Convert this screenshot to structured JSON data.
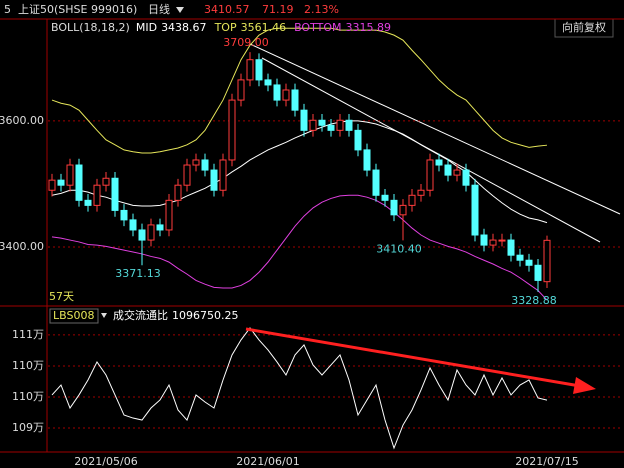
{
  "header": {
    "code": "5",
    "name": "上证50(SHSE 999016)",
    "period": "日线",
    "price": 3410.57,
    "change": 71.19,
    "change_pct": "2.13%",
    "adjust": "向前复权"
  },
  "chart_data": [
    {
      "type": "candlestick",
      "indicator": "BOLL(18,18,2)",
      "bars_label": "57天",
      "up_color": "#ff3c3c",
      "down_color": "#54ffff",
      "categories": [
        null,
        null,
        null,
        null,
        null,
        null,
        "2021/05/06",
        null,
        null,
        null,
        null,
        null,
        null,
        null,
        null,
        null,
        null,
        null,
        null,
        null,
        null,
        null,
        null,
        null,
        "2021/06/01",
        null,
        null,
        null,
        null,
        null,
        null,
        null,
        null,
        null,
        null,
        null,
        null,
        null,
        null,
        null,
        null,
        null,
        null,
        null,
        null,
        null,
        null,
        null,
        null,
        null,
        null,
        null,
        null,
        null,
        null,
        "2021/07/15"
      ],
      "open": [
        3490,
        3506,
        3498,
        3530,
        3474,
        3466,
        3498,
        3509,
        3458,
        3443,
        3427,
        3411,
        3435,
        3427,
        3474,
        3498,
        3530,
        3538,
        3522,
        3490,
        3538,
        3633,
        3665,
        3697,
        3665,
        3657,
        3633,
        3649,
        3617,
        3585,
        3601,
        3593,
        3585,
        3601,
        3585,
        3554,
        3522,
        3482,
        3474,
        3451,
        3466,
        3482,
        3490,
        3538,
        3530,
        3514,
        3522,
        3498,
        3419,
        3403,
        3411,
        3411,
        3387,
        3379,
        3371,
        3345
      ],
      "high": [
        3516,
        3516,
        3540,
        3540,
        3484,
        3508,
        3519,
        3519,
        3468,
        3453,
        3437,
        3445,
        3445,
        3484,
        3508,
        3540,
        3548,
        3548,
        3532,
        3548,
        3643,
        3675,
        3709,
        3707,
        3675,
        3667,
        3659,
        3659,
        3627,
        3611,
        3611,
        3603,
        3611,
        3611,
        3595,
        3564,
        3532,
        3492,
        3484,
        3476,
        3492,
        3500,
        3548,
        3548,
        3540,
        3532,
        3532,
        3508,
        3429,
        3421,
        3421,
        3421,
        3397,
        3389,
        3381,
        3418
      ],
      "low": [
        3480,
        3488,
        3488,
        3464,
        3456,
        3456,
        3488,
        3448,
        3433,
        3417,
        3371.13,
        3401,
        3417,
        3417,
        3464,
        3488,
        3520,
        3512,
        3480,
        3480,
        3528,
        3623,
        3655,
        3655,
        3647,
        3623,
        3623,
        3607,
        3575,
        3575,
        3583,
        3575,
        3575,
        3575,
        3544,
        3512,
        3472,
        3464,
        3441,
        3410.4,
        3456,
        3472,
        3480,
        3520,
        3504,
        3504,
        3488,
        3409,
        3393,
        3393,
        3401,
        3377,
        3369,
        3361,
        3328.88,
        3335
      ],
      "close": [
        3506,
        3498,
        3530,
        3474,
        3466,
        3498,
        3509,
        3458,
        3443,
        3427,
        3411,
        3435,
        3427,
        3474,
        3498,
        3530,
        3538,
        3522,
        3490,
        3538,
        3633,
        3665,
        3697,
        3665,
        3657,
        3633,
        3649,
        3617,
        3585,
        3601,
        3593,
        3585,
        3601,
        3585,
        3554,
        3522,
        3482,
        3474,
        3451,
        3466,
        3482,
        3490,
        3538,
        3530,
        3514,
        3522,
        3498,
        3419,
        3403,
        3411,
        3411,
        3387,
        3379,
        3371,
        3347,
        3410.57
      ],
      "series": [
        {
          "name": "MID",
          "color": "#ffffff",
          "values": [
            3482,
            3485,
            3490,
            3490,
            3487,
            3482,
            3479,
            3474,
            3470,
            3466,
            3465,
            3465,
            3466,
            3470,
            3474,
            3481,
            3487,
            3493,
            3501,
            3509,
            3519,
            3528,
            3538,
            3546,
            3554,
            3560,
            3566,
            3573,
            3579,
            3585,
            3590,
            3595,
            3598,
            3600,
            3600,
            3598,
            3595,
            3590,
            3585,
            3579,
            3571,
            3562,
            3554,
            3546,
            3538,
            3528,
            3519,
            3506,
            3493,
            3481,
            3470,
            3460,
            3452,
            3446,
            3443,
            3438.67
          ]
        },
        {
          "name": "TOP",
          "color": "#e6e65a",
          "values": [
            3633,
            3628,
            3625,
            3617,
            3601,
            3585,
            3570,
            3562,
            3554,
            3551,
            3549,
            3549,
            3551,
            3554,
            3557,
            3562,
            3570,
            3585,
            3609,
            3633,
            3665,
            3697,
            3720,
            3736,
            3744,
            3747,
            3747,
            3747,
            3747,
            3747,
            3747,
            3747,
            3744,
            3744,
            3744,
            3744,
            3744,
            3741,
            3736,
            3728,
            3712,
            3697,
            3681,
            3665,
            3652,
            3641,
            3633,
            3617,
            3601,
            3585,
            3573,
            3566,
            3562,
            3558,
            3560,
            3561.46
          ]
        },
        {
          "name": "BOTTOM",
          "color": "#e040e0",
          "values": [
            3416,
            3414,
            3411,
            3408,
            3404,
            3403,
            3401,
            3398,
            3395,
            3392,
            3389,
            3385,
            3382,
            3376,
            3366,
            3357,
            3347,
            3341,
            3336,
            3335,
            3335,
            3339,
            3347,
            3360,
            3376,
            3395,
            3414,
            3433,
            3449,
            3462,
            3471,
            3477,
            3481,
            3482,
            3482,
            3479,
            3474,
            3466,
            3455,
            3443,
            3430,
            3419,
            3411,
            3406,
            3401,
            3397,
            3392,
            3385,
            3379,
            3373,
            3366,
            3360,
            3351,
            3341,
            3331,
            3315.89
          ]
        }
      ],
      "annotations": [
        {
          "value": 3709,
          "label": "3709.00",
          "color": "#ff3c3c"
        },
        {
          "value": 3371.13,
          "label": "3371.13",
          "color": "#54d8d8"
        },
        {
          "value": 3410.4,
          "label": "3410.40",
          "color": "#54d8d8"
        },
        {
          "value": 3328.88,
          "label": "3328.88",
          "color": "#54d8d8"
        }
      ],
      "ylim": [
        3308,
        3760
      ],
      "yticks": [
        {
          "value": 3400,
          "label": "3400.00"
        },
        {
          "value": 3600,
          "label": "3600.00"
        }
      ],
      "grid": true
    },
    {
      "type": "line",
      "indicator": "LBS008",
      "series": [
        {
          "name": "成交流通比",
          "color": "#ffffff",
          "values": [
            1098000,
            1100400,
            1094840,
            1098000,
            1101610,
            1105970,
            1102820,
            1098000,
            1093150,
            1092420,
            1091940,
            1094840,
            1096780,
            1100400,
            1094360,
            1091940,
            1098000,
            1096290,
            1094840,
            1101610,
            1107660,
            1111290,
            1114190,
            1111290,
            1108870,
            1105970,
            1102820,
            1107660,
            1110080,
            1105240,
            1102820,
            1105240,
            1107660,
            1101610,
            1093150,
            1096780,
            1100400,
            1091940,
            1085170,
            1090730,
            1094360,
            1099200,
            1104520,
            1100400,
            1096780,
            1104030,
            1100400,
            1098000,
            1102820,
            1098000,
            1102100,
            1098000,
            1100400,
            1101610,
            1097260,
            1096750.25
          ]
        }
      ],
      "ylim": [
        1084700,
        1119000
      ],
      "yticks": [
        {
          "value": 1112500,
          "label": "111万"
        },
        {
          "value": 1105000,
          "label": "110万"
        },
        {
          "value": 1097500,
          "label": "110万"
        },
        {
          "value": 1090000,
          "label": "109万"
        }
      ],
      "grid": true
    }
  ]
}
